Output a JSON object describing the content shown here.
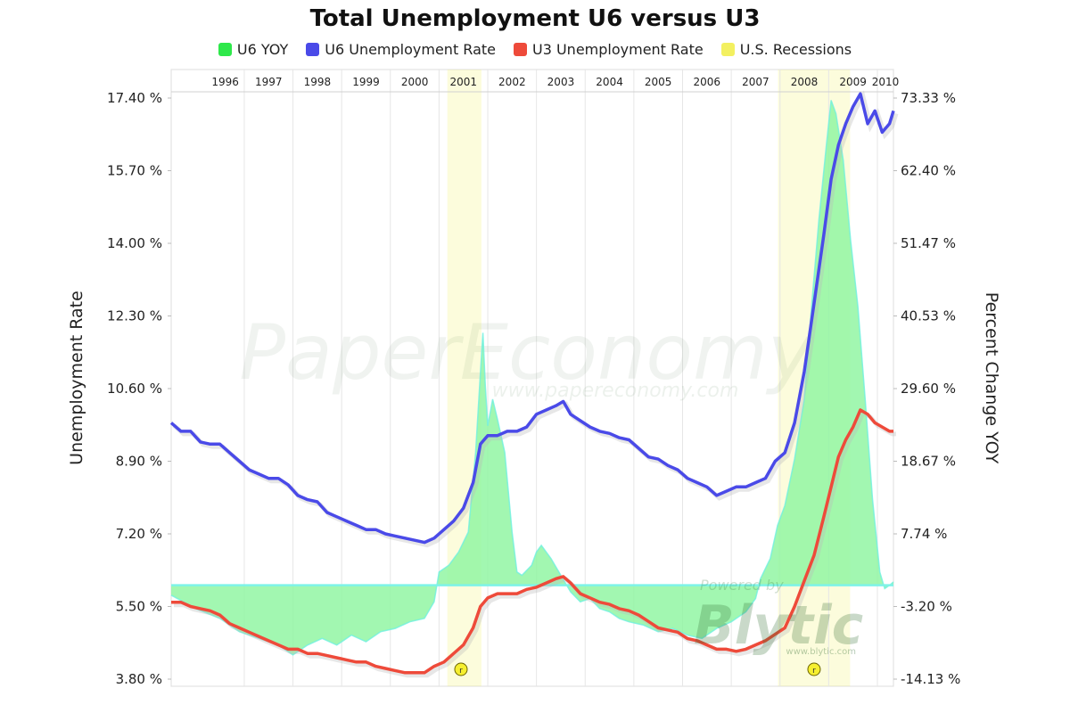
{
  "chart_data": {
    "type": "line",
    "title": "Total Unemployment U6 versus U3",
    "ylabel": "Unemployment Rate",
    "y2label": "Percent Change YOY",
    "ylim": [
      3.8,
      17.4
    ],
    "y2lim": [
      -14.13,
      73.33
    ],
    "yticks": [
      "17.40 %",
      "15.70 %",
      "14.00 %",
      "12.30 %",
      "10.60 %",
      "8.90 %",
      "7.20 %",
      "5.50 %",
      "3.80 %"
    ],
    "y2ticks": [
      "73.33 %",
      "62.40 %",
      "51.47 %",
      "40.53 %",
      "29.60 %",
      "18.67 %",
      "7.74 %",
      "-3.20 %",
      "-14.13 %"
    ],
    "years": [
      "1996",
      "1997",
      "1998",
      "1999",
      "2000",
      "2001",
      "2002",
      "2003",
      "2004",
      "2005",
      "2006",
      "2007",
      "2008",
      "2009",
      "2010"
    ],
    "xrange": [
      1995.5,
      2010.33
    ],
    "legend_position": "top",
    "grid": "vertical year lines",
    "recessions": [
      [
        2001.17,
        2001.87
      ],
      [
        2007.96,
        2009.44
      ]
    ],
    "recession_markers": [
      {
        "x": 2001.45,
        "label": "r"
      },
      {
        "x": 2008.7,
        "label": "r"
      }
    ],
    "colors": {
      "u6_yoy": "#2ee84a",
      "u6": "#4a4ae8",
      "u3": "#ee4a3a",
      "recession": "#f3f060"
    },
    "series": [
      {
        "name": "U6 YOY",
        "axis": "right",
        "type": "area",
        "points": [
          [
            1995.5,
            -1.5
          ],
          [
            1996.0,
            -3.5
          ],
          [
            1996.5,
            -5.0
          ],
          [
            1996.9,
            -7.0
          ],
          [
            1997.3,
            -8.0
          ],
          [
            1997.7,
            -9.0
          ],
          [
            1998.0,
            -10.5
          ],
          [
            1998.3,
            -9.0
          ],
          [
            1998.6,
            -8.0
          ],
          [
            1998.9,
            -9.0
          ],
          [
            1999.2,
            -7.5
          ],
          [
            1999.5,
            -8.5
          ],
          [
            1999.8,
            -7.0
          ],
          [
            2000.1,
            -6.5
          ],
          [
            2000.4,
            -5.5
          ],
          [
            2000.7,
            -5.0
          ],
          [
            2000.9,
            -2.5
          ],
          [
            2001.0,
            2.0
          ],
          [
            2001.2,
            3.0
          ],
          [
            2001.4,
            5.0
          ],
          [
            2001.6,
            8.0
          ],
          [
            2001.75,
            20.0
          ],
          [
            2001.85,
            32.0
          ],
          [
            2001.9,
            38.0
          ],
          [
            2001.95,
            30.0
          ],
          [
            2002.0,
            24.0
          ],
          [
            2002.1,
            28.0
          ],
          [
            2002.2,
            25.0
          ],
          [
            2002.35,
            20.0
          ],
          [
            2002.5,
            8.0
          ],
          [
            2002.6,
            2.0
          ],
          [
            2002.7,
            1.5
          ],
          [
            2002.9,
            3.0
          ],
          [
            2003.0,
            5.0
          ],
          [
            2003.1,
            6.0
          ],
          [
            2003.3,
            4.0
          ],
          [
            2003.5,
            1.5
          ],
          [
            2003.7,
            -1.0
          ],
          [
            2003.9,
            -2.5
          ],
          [
            2004.1,
            -2.0
          ],
          [
            2004.3,
            -3.5
          ],
          [
            2004.5,
            -4.0
          ],
          [
            2004.7,
            -5.0
          ],
          [
            2004.9,
            -5.5
          ],
          [
            2005.2,
            -6.0
          ],
          [
            2005.5,
            -7.0
          ],
          [
            2005.8,
            -6.5
          ],
          [
            2006.1,
            -7.5
          ],
          [
            2006.4,
            -8.0
          ],
          [
            2006.7,
            -6.5
          ],
          [
            2007.0,
            -5.5
          ],
          [
            2007.3,
            -4.0
          ],
          [
            2007.5,
            -2.0
          ],
          [
            2007.6,
            1.0
          ],
          [
            2007.8,
            4.0
          ],
          [
            2007.95,
            9.0
          ],
          [
            2008.1,
            12.0
          ],
          [
            2008.3,
            19.0
          ],
          [
            2008.5,
            28.0
          ],
          [
            2008.65,
            42.0
          ],
          [
            2008.8,
            55.0
          ],
          [
            2008.95,
            66.0
          ],
          [
            2009.05,
            73.0
          ],
          [
            2009.15,
            71.0
          ],
          [
            2009.3,
            64.0
          ],
          [
            2009.45,
            52.0
          ],
          [
            2009.6,
            42.0
          ],
          [
            2009.75,
            28.0
          ],
          [
            2009.9,
            13.0
          ],
          [
            2010.05,
            2.0
          ],
          [
            2010.15,
            -0.5
          ],
          [
            2010.25,
            0.0
          ],
          [
            2010.33,
            0.5
          ]
        ]
      },
      {
        "name": "U6 Unemployment Rate",
        "axis": "left",
        "type": "line",
        "points": [
          [
            1995.5,
            9.8
          ],
          [
            1995.7,
            9.6
          ],
          [
            1995.9,
            9.6
          ],
          [
            1996.1,
            9.35
          ],
          [
            1996.3,
            9.3
          ],
          [
            1996.5,
            9.3
          ],
          [
            1996.7,
            9.1
          ],
          [
            1996.9,
            8.9
          ],
          [
            1997.1,
            8.7
          ],
          [
            1997.3,
            8.6
          ],
          [
            1997.5,
            8.5
          ],
          [
            1997.7,
            8.5
          ],
          [
            1997.9,
            8.35
          ],
          [
            1998.1,
            8.1
          ],
          [
            1998.3,
            8.0
          ],
          [
            1998.5,
            7.95
          ],
          [
            1998.7,
            7.7
          ],
          [
            1998.9,
            7.6
          ],
          [
            1999.1,
            7.5
          ],
          [
            1999.3,
            7.4
          ],
          [
            1999.5,
            7.3
          ],
          [
            1999.7,
            7.3
          ],
          [
            1999.9,
            7.2
          ],
          [
            2000.1,
            7.15
          ],
          [
            2000.3,
            7.1
          ],
          [
            2000.5,
            7.05
          ],
          [
            2000.7,
            7.0
          ],
          [
            2000.9,
            7.1
          ],
          [
            2001.1,
            7.3
          ],
          [
            2001.3,
            7.5
          ],
          [
            2001.5,
            7.8
          ],
          [
            2001.7,
            8.4
          ],
          [
            2001.85,
            9.3
          ],
          [
            2002.0,
            9.5
          ],
          [
            2002.2,
            9.5
          ],
          [
            2002.4,
            9.6
          ],
          [
            2002.6,
            9.6
          ],
          [
            2002.8,
            9.7
          ],
          [
            2003.0,
            10.0
          ],
          [
            2003.2,
            10.1
          ],
          [
            2003.4,
            10.2
          ],
          [
            2003.55,
            10.3
          ],
          [
            2003.7,
            10.0
          ],
          [
            2003.9,
            9.85
          ],
          [
            2004.1,
            9.7
          ],
          [
            2004.3,
            9.6
          ],
          [
            2004.5,
            9.55
          ],
          [
            2004.7,
            9.45
          ],
          [
            2004.9,
            9.4
          ],
          [
            2005.1,
            9.2
          ],
          [
            2005.3,
            9.0
          ],
          [
            2005.5,
            8.95
          ],
          [
            2005.7,
            8.8
          ],
          [
            2005.9,
            8.7
          ],
          [
            2006.1,
            8.5
          ],
          [
            2006.3,
            8.4
          ],
          [
            2006.5,
            8.3
          ],
          [
            2006.7,
            8.1
          ],
          [
            2006.9,
            8.2
          ],
          [
            2007.1,
            8.3
          ],
          [
            2007.3,
            8.3
          ],
          [
            2007.5,
            8.4
          ],
          [
            2007.7,
            8.5
          ],
          [
            2007.9,
            8.9
          ],
          [
            2008.1,
            9.1
          ],
          [
            2008.3,
            9.8
          ],
          [
            2008.5,
            11.0
          ],
          [
            2008.7,
            12.6
          ],
          [
            2008.9,
            14.2
          ],
          [
            2009.05,
            15.5
          ],
          [
            2009.2,
            16.3
          ],
          [
            2009.35,
            16.8
          ],
          [
            2009.5,
            17.2
          ],
          [
            2009.65,
            17.5
          ],
          [
            2009.8,
            16.8
          ],
          [
            2009.95,
            17.1
          ],
          [
            2010.1,
            16.6
          ],
          [
            2010.25,
            16.8
          ],
          [
            2010.33,
            17.1
          ]
        ]
      },
      {
        "name": "U3 Unemployment Rate",
        "axis": "left",
        "type": "line",
        "points": [
          [
            1995.5,
            5.6
          ],
          [
            1995.7,
            5.6
          ],
          [
            1995.9,
            5.5
          ],
          [
            1996.1,
            5.45
          ],
          [
            1996.3,
            5.4
          ],
          [
            1996.5,
            5.3
          ],
          [
            1996.7,
            5.1
          ],
          [
            1996.9,
            5.0
          ],
          [
            1997.1,
            4.9
          ],
          [
            1997.3,
            4.8
          ],
          [
            1997.5,
            4.7
          ],
          [
            1997.7,
            4.6
          ],
          [
            1997.9,
            4.5
          ],
          [
            1998.1,
            4.5
          ],
          [
            1998.3,
            4.4
          ],
          [
            1998.5,
            4.4
          ],
          [
            1998.7,
            4.35
          ],
          [
            1998.9,
            4.3
          ],
          [
            1999.1,
            4.25
          ],
          [
            1999.3,
            4.2
          ],
          [
            1999.5,
            4.2
          ],
          [
            1999.7,
            4.1
          ],
          [
            1999.9,
            4.05
          ],
          [
            2000.1,
            4.0
          ],
          [
            2000.3,
            3.95
          ],
          [
            2000.5,
            3.95
          ],
          [
            2000.7,
            3.95
          ],
          [
            2000.9,
            4.1
          ],
          [
            2001.1,
            4.2
          ],
          [
            2001.3,
            4.4
          ],
          [
            2001.5,
            4.6
          ],
          [
            2001.7,
            5.0
          ],
          [
            2001.85,
            5.5
          ],
          [
            2002.0,
            5.7
          ],
          [
            2002.2,
            5.8
          ],
          [
            2002.4,
            5.8
          ],
          [
            2002.6,
            5.8
          ],
          [
            2002.8,
            5.9
          ],
          [
            2003.0,
            5.95
          ],
          [
            2003.2,
            6.05
          ],
          [
            2003.4,
            6.15
          ],
          [
            2003.55,
            6.2
          ],
          [
            2003.7,
            6.05
          ],
          [
            2003.9,
            5.8
          ],
          [
            2004.1,
            5.7
          ],
          [
            2004.3,
            5.6
          ],
          [
            2004.5,
            5.55
          ],
          [
            2004.7,
            5.45
          ],
          [
            2004.9,
            5.4
          ],
          [
            2005.1,
            5.3
          ],
          [
            2005.3,
            5.15
          ],
          [
            2005.5,
            5.0
          ],
          [
            2005.7,
            4.95
          ],
          [
            2005.9,
            4.9
          ],
          [
            2006.1,
            4.75
          ],
          [
            2006.3,
            4.7
          ],
          [
            2006.5,
            4.6
          ],
          [
            2006.7,
            4.5
          ],
          [
            2006.9,
            4.5
          ],
          [
            2007.1,
            4.45
          ],
          [
            2007.3,
            4.5
          ],
          [
            2007.5,
            4.6
          ],
          [
            2007.7,
            4.7
          ],
          [
            2007.9,
            4.85
          ],
          [
            2008.1,
            5.0
          ],
          [
            2008.3,
            5.5
          ],
          [
            2008.5,
            6.1
          ],
          [
            2008.7,
            6.7
          ],
          [
            2008.9,
            7.6
          ],
          [
            2009.05,
            8.3
          ],
          [
            2009.2,
            9.0
          ],
          [
            2009.35,
            9.4
          ],
          [
            2009.5,
            9.7
          ],
          [
            2009.65,
            10.1
          ],
          [
            2009.8,
            10.0
          ],
          [
            2009.95,
            9.8
          ],
          [
            2010.1,
            9.7
          ],
          [
            2010.25,
            9.6
          ],
          [
            2010.33,
            9.6
          ]
        ]
      }
    ]
  },
  "watermarks": {
    "brand": "PaperEconomy",
    "url": "www.papereconomy.com",
    "powered": "Powered by",
    "vendor": "Blytic",
    "vendor_url": "www.blytic.com"
  }
}
